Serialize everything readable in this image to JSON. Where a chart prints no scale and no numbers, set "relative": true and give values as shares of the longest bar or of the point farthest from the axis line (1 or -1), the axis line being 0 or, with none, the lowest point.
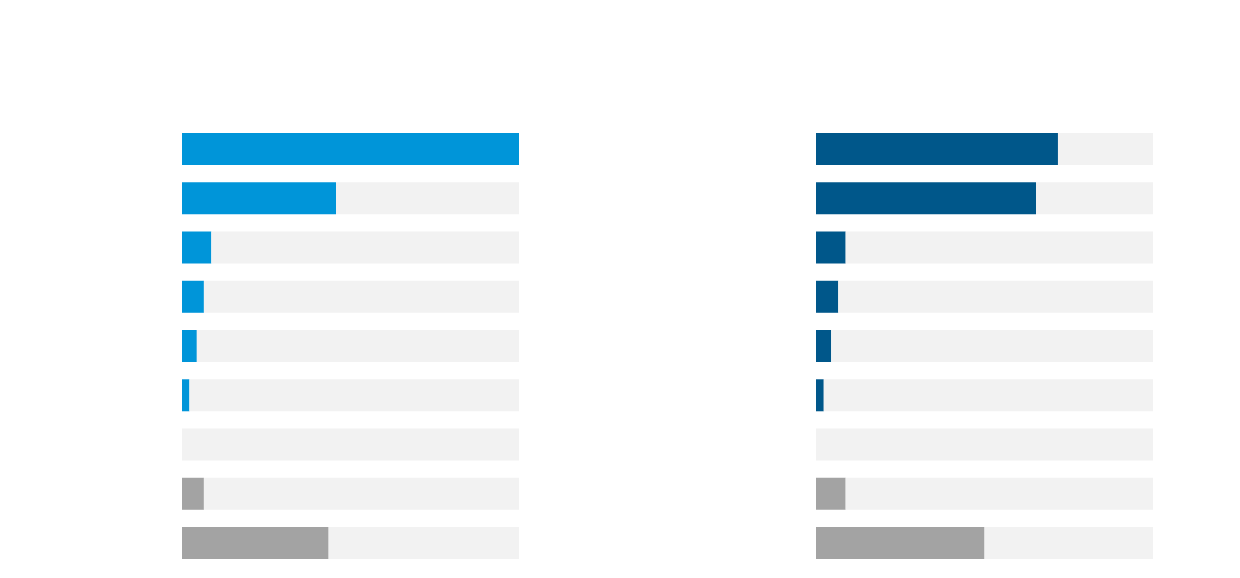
{
  "chart_data": [
    {
      "type": "bar",
      "orientation": "horizontal",
      "stacked": true,
      "relative": true,
      "categories": [
        null,
        null,
        null,
        null,
        null,
        null,
        null,
        null,
        null
      ],
      "series": [
        {
          "colors": [
            "#0095d9",
            "#0095d9",
            "#0095d9",
            "#0095d9",
            "#0095d9",
            "#0095d9",
            null,
            "#a3a3a3",
            "#a3a3a3"
          ],
          "values": [
            1,
            0.457,
            0.087,
            0.065,
            0.044,
            0.022,
            null,
            0.065,
            0.435
          ]
        },
        {
          "color": "#f2f2f2",
          "values": [
            null,
            0.543,
            0.913,
            0.935,
            0.956,
            0.978,
            1,
            0.935,
            0.565
          ]
        }
      ]
    },
    {
      "type": "bar",
      "orientation": "horizontal",
      "stacked": true,
      "relative": true,
      "categories": [
        null,
        null,
        null,
        null,
        null,
        null,
        null,
        null,
        null
      ],
      "series": [
        {
          "colors": [
            "#00578a",
            "#00578a",
            "#00578a",
            "#00578a",
            "#00578a",
            "#00578a",
            null,
            "#a3a3a3",
            "#a3a3a3"
          ],
          "values": [
            0.718,
            0.653,
            0.088,
            0.066,
            0.045,
            0.023,
            null,
            0.088,
            0.5
          ]
        },
        {
          "color": "#f2f2f2",
          "values": [
            0.282,
            0.347,
            0.912,
            0.934,
            0.955,
            0.977,
            1,
            0.912,
            0.5
          ]
        }
      ]
    }
  ]
}
